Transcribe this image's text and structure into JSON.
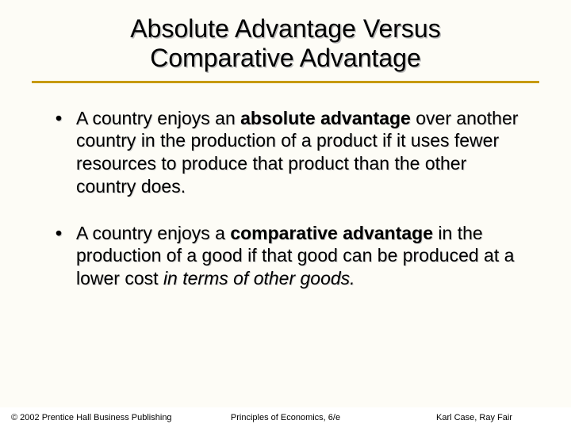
{
  "colors": {
    "background": "#fdfcf6",
    "title_underline": "#c79a00",
    "text": "#000000",
    "text_shadow": "#bdbdbd",
    "footer_bg": "#ffffff"
  },
  "title": {
    "line1": "Absolute Advantage Versus",
    "line2": "Comparative Advantage",
    "fontsize": 32
  },
  "bullets": [
    {
      "segments": [
        {
          "text": "A country enjoys an ",
          "bold": false,
          "italic": false
        },
        {
          "text": "absolute advantage",
          "bold": true,
          "italic": false
        },
        {
          "text": " over another country in the production of a product if it uses fewer resources to produce that product than the other country does.",
          "bold": false,
          "italic": false
        }
      ]
    },
    {
      "segments": [
        {
          "text": "A country enjoys a ",
          "bold": false,
          "italic": false
        },
        {
          "text": "comparative advantage",
          "bold": true,
          "italic": false
        },
        {
          "text": " in the production of a good if that good can be produced at a lower cost ",
          "bold": false,
          "italic": false
        },
        {
          "text": "in terms of other goods.",
          "bold": false,
          "italic": true
        }
      ]
    }
  ],
  "footer": {
    "left": "© 2002 Prentice Hall Business Publishing",
    "center": "Principles of Economics, 6/e",
    "right": "Karl Case, Ray Fair"
  }
}
